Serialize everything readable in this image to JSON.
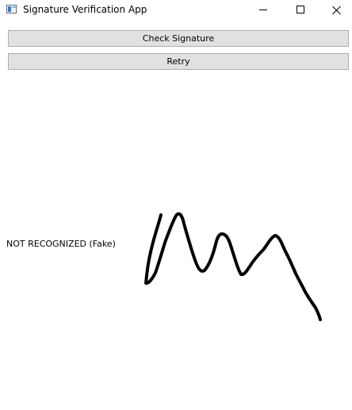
{
  "window": {
    "title": "Signature Verification App",
    "icon": "app-window-icon",
    "controls": [
      "minimize-icon",
      "maximize-icon",
      "close-icon"
    ]
  },
  "toolbar": {
    "check_label": "Check Signature",
    "retry_label": "Retry"
  },
  "result": {
    "status_text": "NOT RECOGNIZED (Fake)"
  },
  "signature": {
    "stroke_color": "#000000"
  }
}
